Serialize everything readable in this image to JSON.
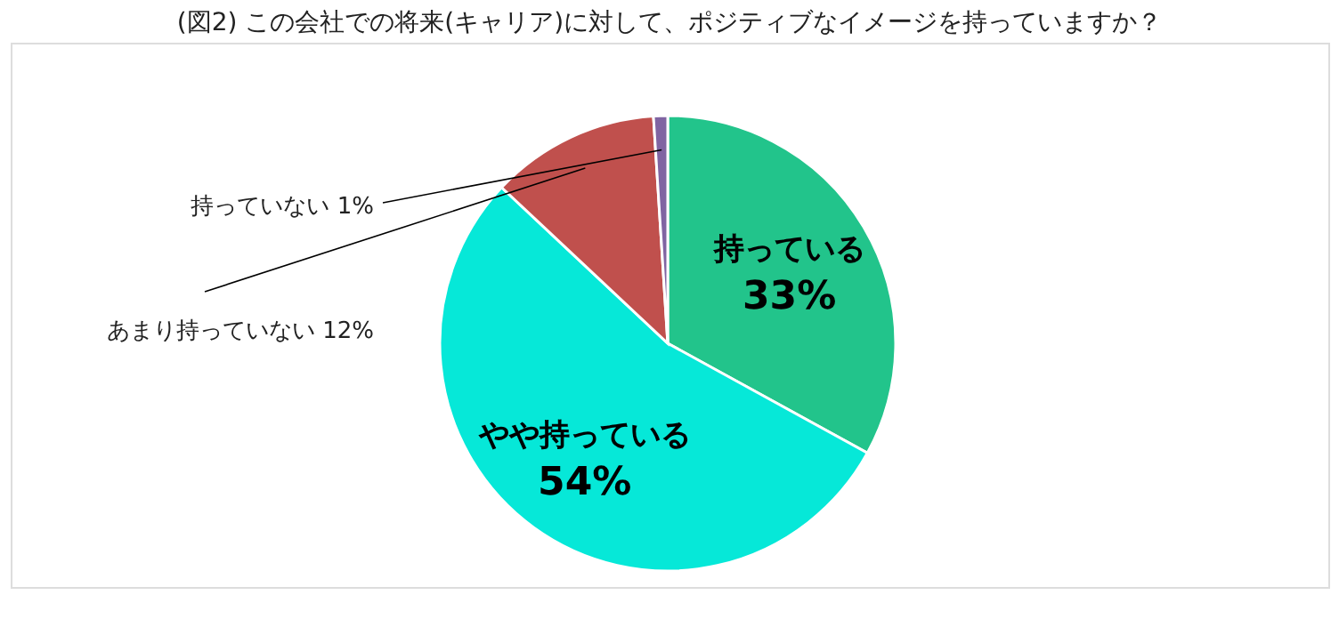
{
  "chart_data": {
    "type": "pie",
    "title": "(図2) この会社での将来(キャリア)に対して、ポジティブなイメージを持っていますか？",
    "categories": [
      "持っている",
      "やや持っている",
      "あまり持っていない",
      "持っていない"
    ],
    "values": [
      33,
      54,
      12,
      1
    ],
    "colors": [
      "#22c48b",
      "#06e8d8",
      "#c0504d",
      "#8064a2"
    ],
    "value_labels": [
      "33%",
      "54%",
      "12%",
      "1%"
    ],
    "legend": false
  }
}
